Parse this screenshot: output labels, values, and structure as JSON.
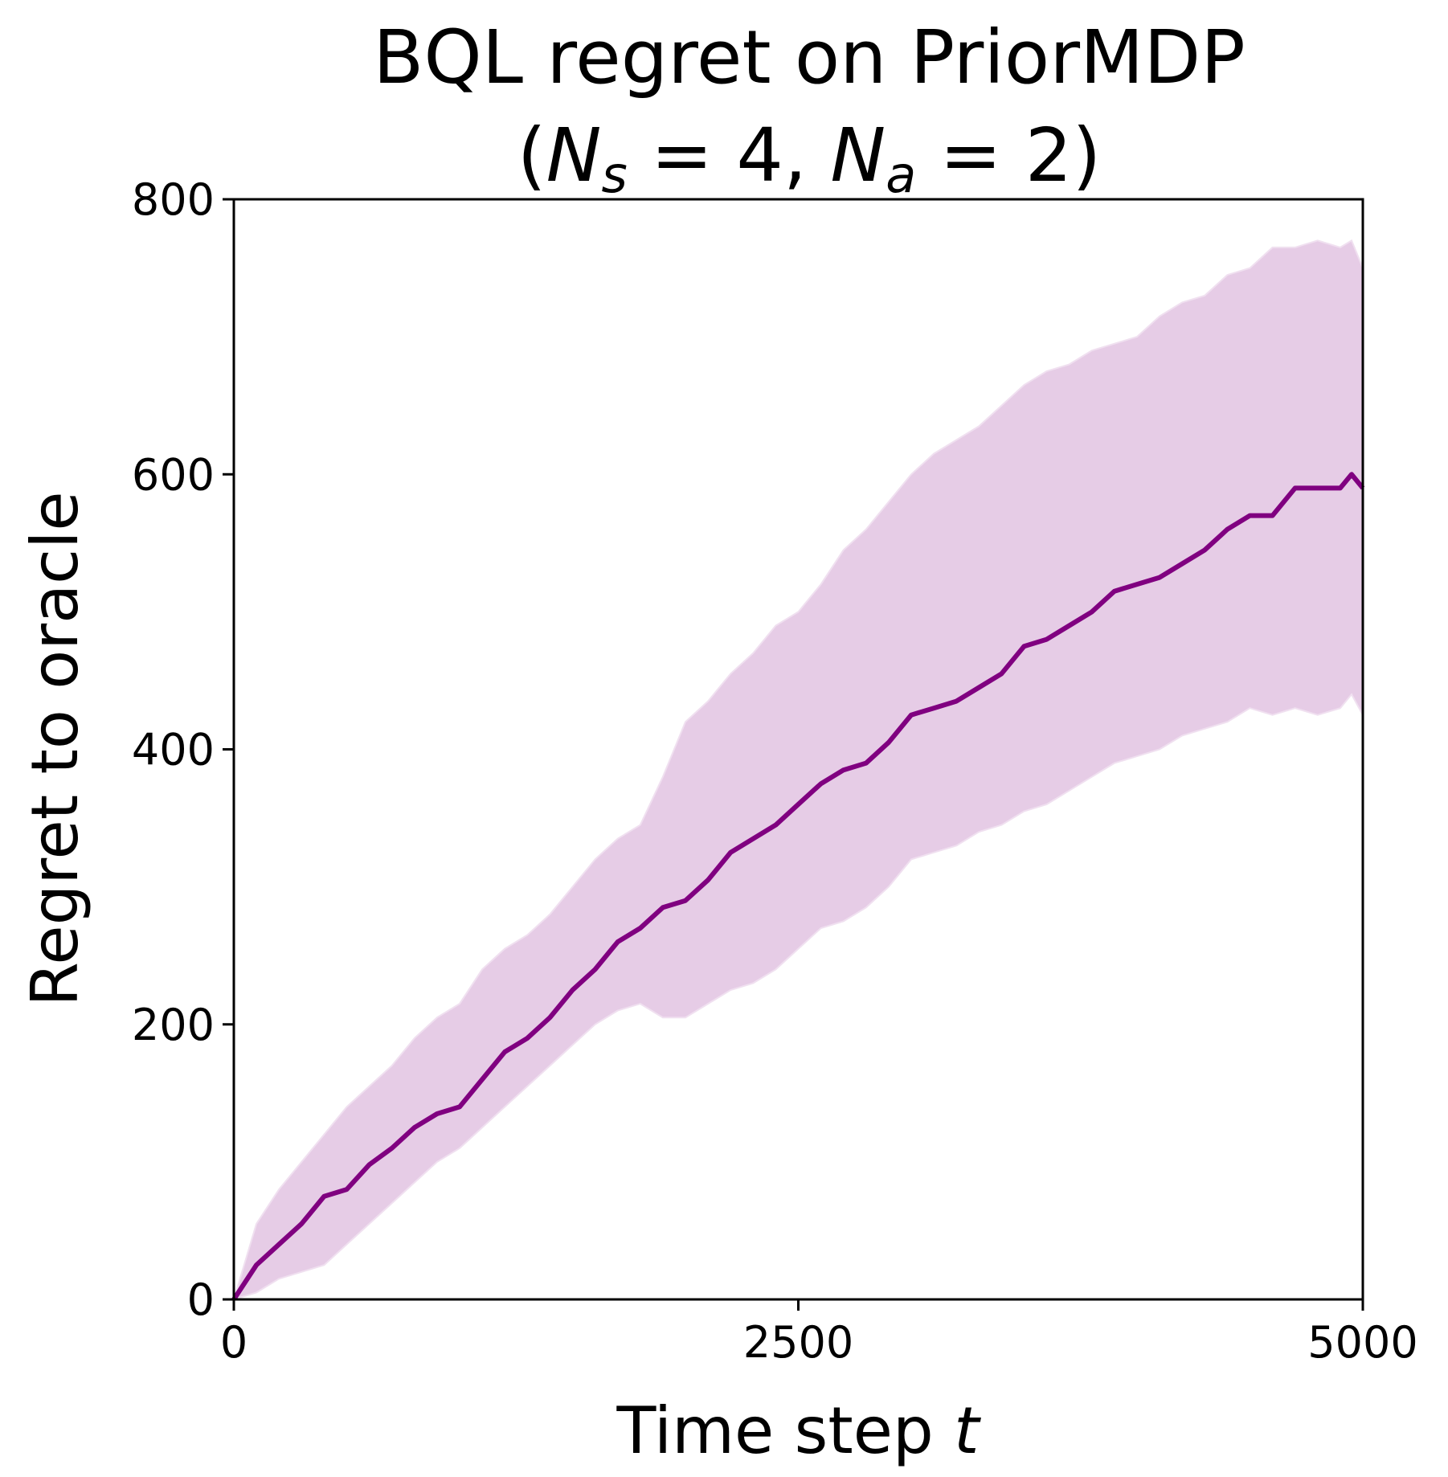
{
  "chart_data": {
    "type": "line",
    "title_line1": "BQL regret on PriorMDP",
    "title_line2": {
      "open": "(",
      "n": "N",
      "sub_s": "s",
      "eq4": " = 4, ",
      "sub_a": "a",
      "eq2": " = 2)",
      "close": ""
    },
    "xlabel_text": "Time step ",
    "xlabel_var": "t",
    "ylabel": "Regret to oracle",
    "xlim": [
      0,
      5000
    ],
    "ylim": [
      0,
      800
    ],
    "xticks": [
      "0",
      "2500",
      "5000"
    ],
    "yticks": [
      "0",
      "200",
      "400",
      "600",
      "800"
    ],
    "grid": false,
    "colors": {
      "line": "#800080",
      "band": "#e6cce6"
    },
    "series": [
      {
        "x": [
          0,
          100,
          200,
          300,
          400,
          500,
          600,
          700,
          800,
          900,
          1000,
          1100,
          1200,
          1300,
          1400,
          1500,
          1600,
          1700,
          1800,
          1900,
          2000,
          2100,
          2200,
          2300,
          2400,
          2500,
          2600,
          2700,
          2800,
          2900,
          3000,
          3100,
          3200,
          3300,
          3400,
          3500,
          3600,
          3700,
          3800,
          3900,
          4000,
          4100,
          4200,
          4300,
          4400,
          4500,
          4600,
          4700,
          4800,
          4900,
          4950,
          5000
        ],
        "mean": [
          0,
          25,
          40,
          55,
          75,
          80,
          98,
          110,
          125,
          135,
          140,
          160,
          180,
          190,
          205,
          225,
          240,
          260,
          270,
          285,
          290,
          305,
          325,
          335,
          345,
          360,
          375,
          385,
          390,
          405,
          425,
          430,
          435,
          445,
          455,
          475,
          480,
          490,
          500,
          515,
          520,
          525,
          535,
          545,
          560,
          570,
          570,
          590,
          590,
          590,
          600,
          590
        ],
        "upper": [
          0,
          55,
          80,
          100,
          120,
          140,
          155,
          170,
          190,
          205,
          215,
          240,
          255,
          265,
          280,
          300,
          320,
          335,
          345,
          380,
          420,
          435,
          455,
          470,
          490,
          500,
          520,
          545,
          560,
          580,
          600,
          615,
          625,
          635,
          650,
          665,
          675,
          680,
          690,
          695,
          700,
          715,
          725,
          730,
          745,
          750,
          765,
          765,
          770,
          765,
          770,
          750
        ],
        "lower": [
          0,
          5,
          15,
          20,
          25,
          40,
          55,
          70,
          85,
          100,
          110,
          125,
          140,
          155,
          170,
          185,
          200,
          210,
          215,
          205,
          205,
          215,
          225,
          230,
          240,
          255,
          270,
          275,
          285,
          300,
          320,
          325,
          330,
          340,
          345,
          355,
          360,
          370,
          380,
          390,
          395,
          400,
          410,
          415,
          420,
          430,
          425,
          430,
          425,
          430,
          440,
          425
        ]
      }
    ]
  }
}
